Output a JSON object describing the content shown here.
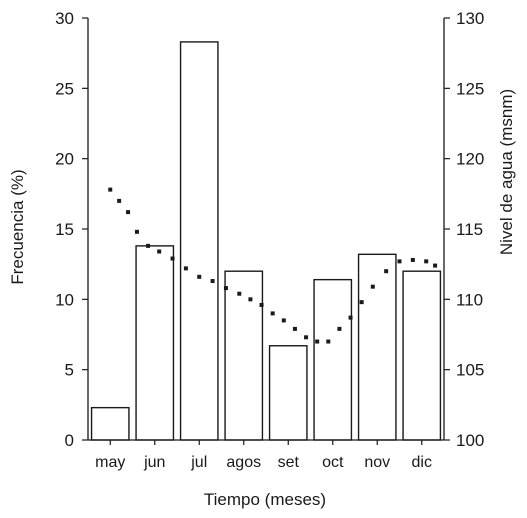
{
  "chart_data": {
    "type": "bar",
    "categories": [
      "may",
      "jun",
      "jul",
      "agos",
      "set",
      "oct",
      "nov",
      "dic"
    ],
    "series": [
      {
        "type": "bar",
        "axis": "left",
        "values": [
          2.3,
          13.8,
          28.3,
          12.0,
          6.7,
          11.4,
          13.2,
          12.0
        ]
      },
      {
        "type": "dotted-line",
        "axis": "right",
        "x": [
          0,
          0.2,
          0.4,
          0.6,
          0.85,
          1.1,
          1.4,
          1.7,
          2.0,
          2.3,
          2.6,
          2.9,
          3.15,
          3.4,
          3.65,
          3.9,
          4.15,
          4.4,
          4.65,
          4.9,
          5.15,
          5.4,
          5.65,
          5.9,
          6.2,
          6.5,
          6.8,
          7.1,
          7.3
        ],
        "values": [
          117.8,
          117.0,
          116.2,
          114.8,
          113.8,
          113.4,
          112.9,
          112.2,
          111.6,
          111.3,
          110.8,
          110.4,
          110.0,
          109.6,
          109.0,
          108.5,
          107.9,
          107.3,
          107.0,
          107.0,
          107.9,
          108.7,
          109.8,
          110.9,
          112.0,
          112.7,
          112.8,
          112.7,
          112.4
        ]
      }
    ],
    "xlabel": "Tiempo (meses)",
    "ylabel": "Frecuencia (%)",
    "y2label": "Nivel de agua (msnm)",
    "ylim": [
      0,
      30
    ],
    "y2lim": [
      100,
      130
    ],
    "yticks": [
      0,
      5,
      10,
      15,
      20,
      25,
      30
    ],
    "y2ticks": [
      100,
      105,
      110,
      115,
      120,
      125,
      130
    ]
  }
}
